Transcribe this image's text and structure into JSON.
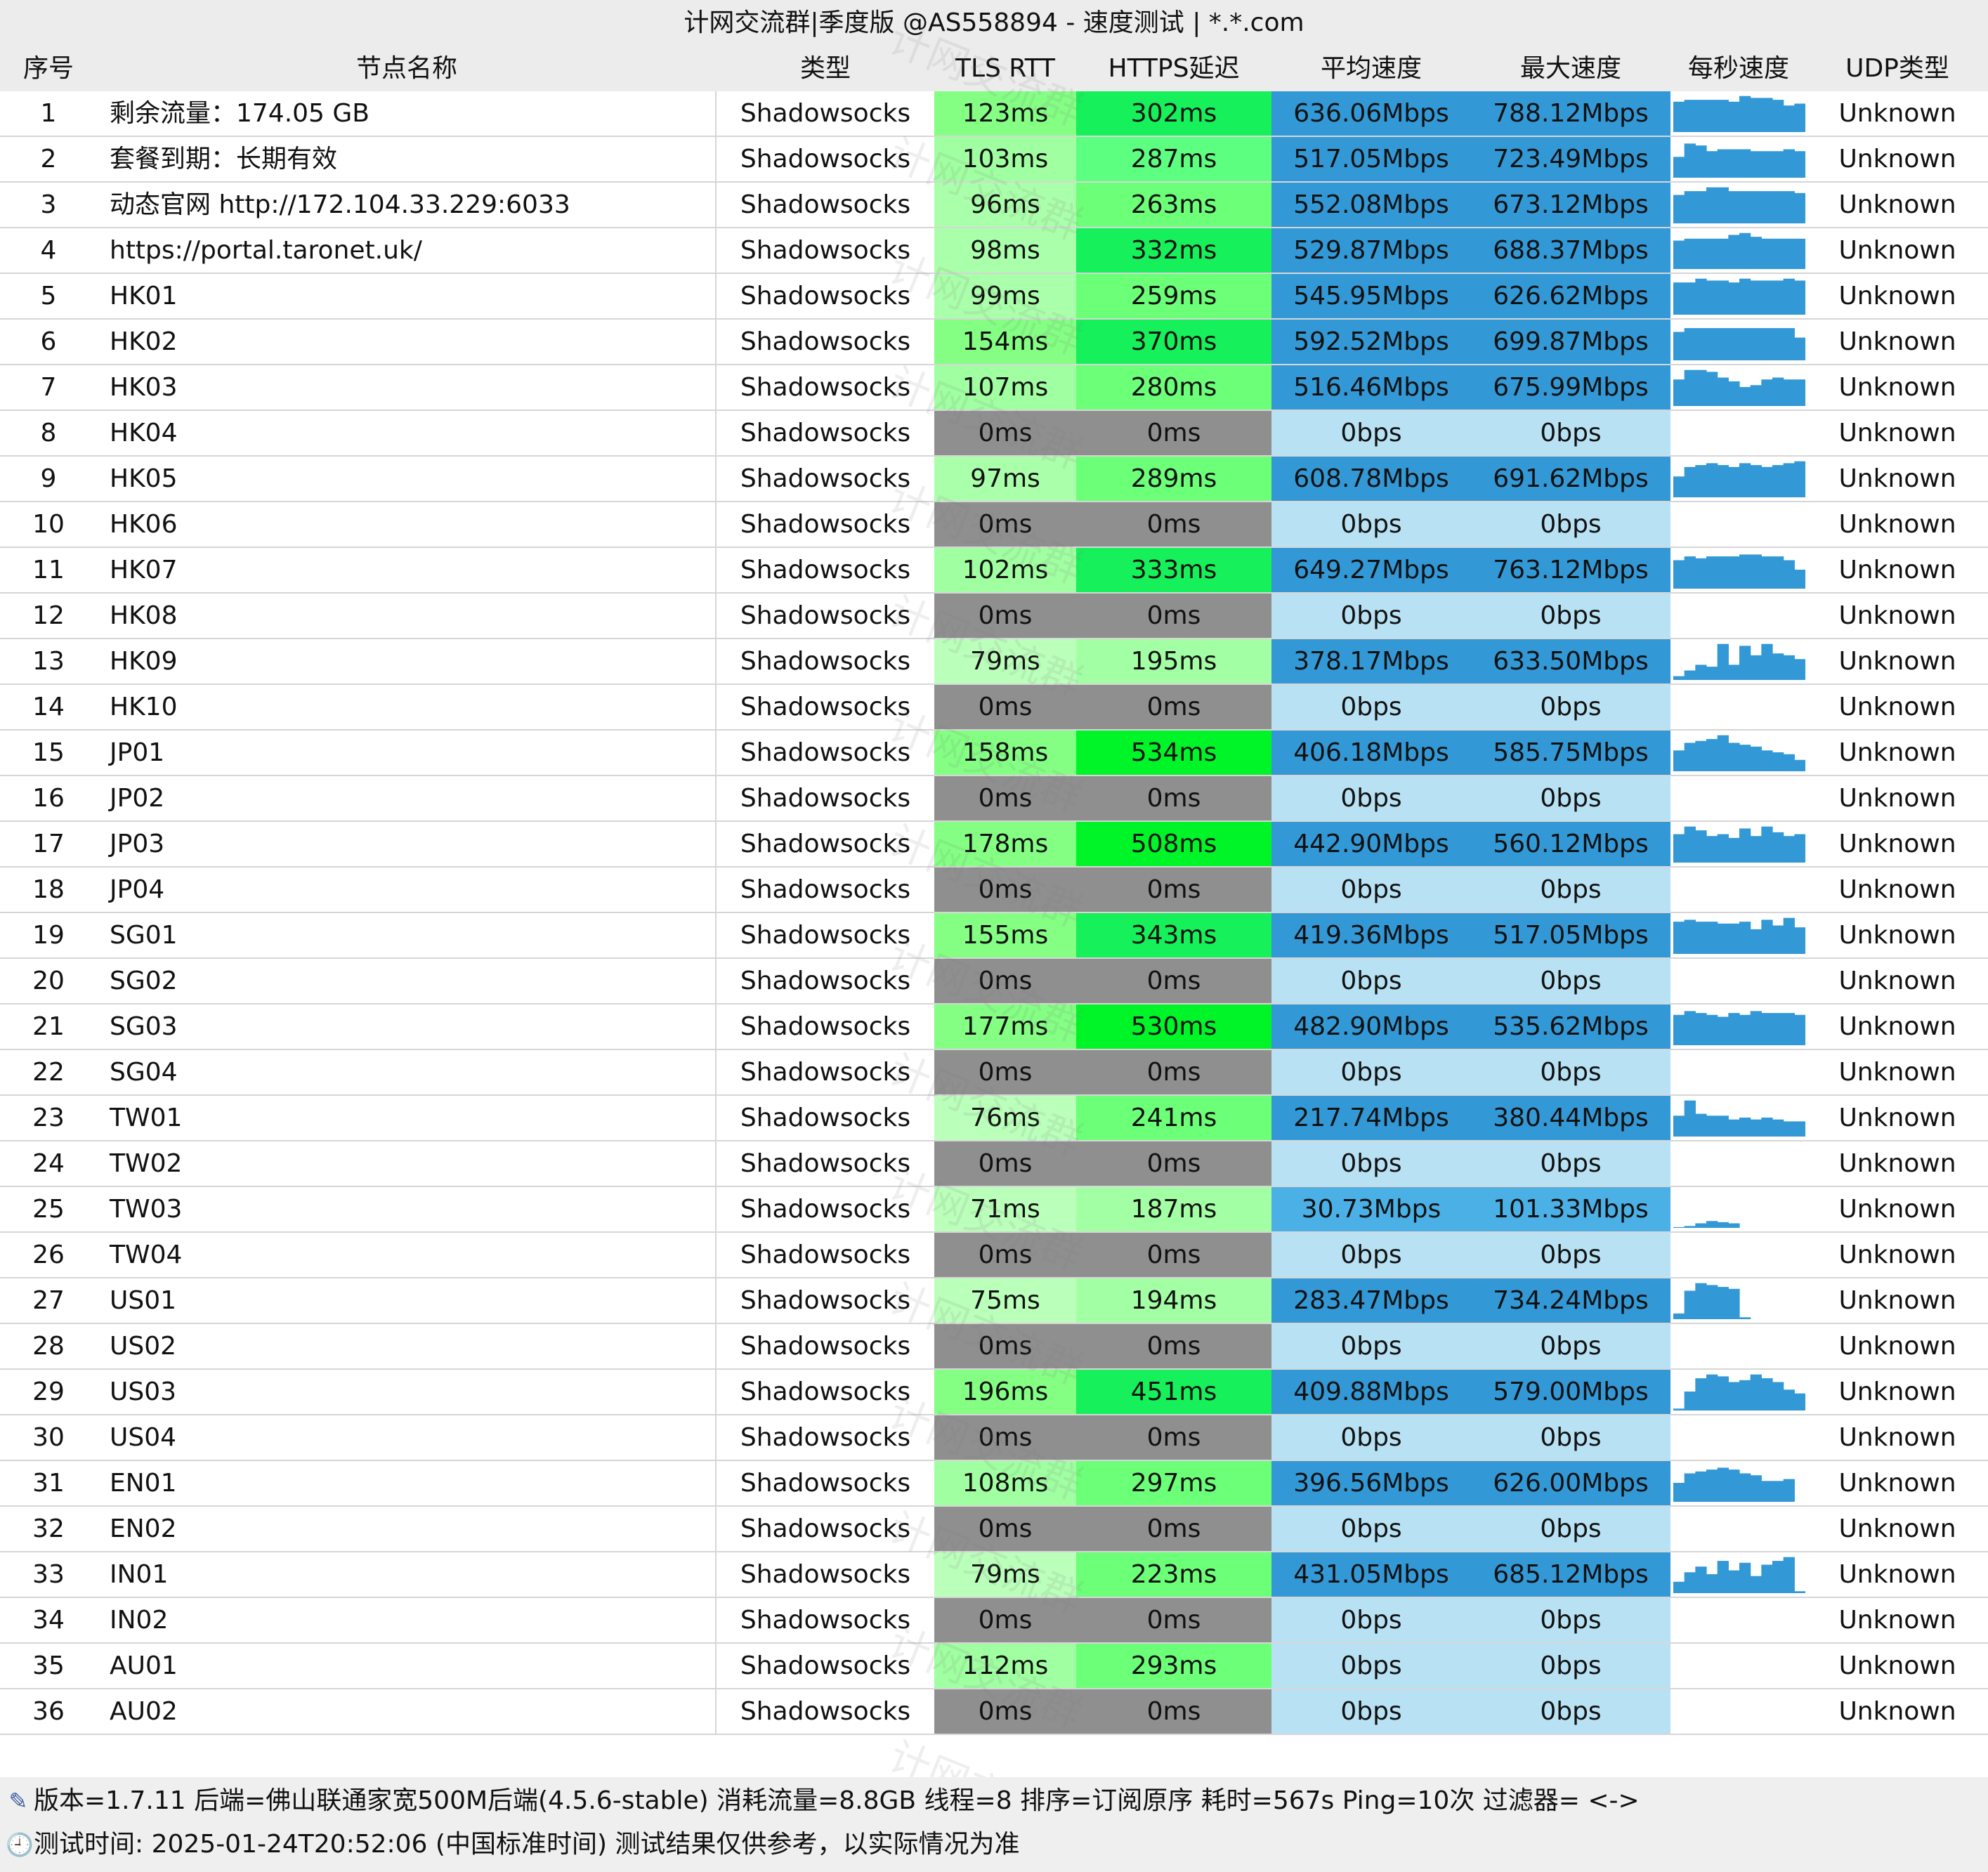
{
  "title": "计网交流群|季度版 @AS558894 - 速度测试 | *.*.com",
  "headers": {
    "index": "序号",
    "name": "节点名称",
    "type": "类型",
    "tls_rtt": "TLS RTT",
    "https_delay": "HTTPS延迟",
    "avg_speed": "平均速度",
    "max_speed": "最大速度",
    "per_second": "每秒速度",
    "udp_type": "UDP类型"
  },
  "watermark_text": "计网交流群",
  "colors": {
    "fail_latency_bg": "#8f8f8f",
    "fail_speed_bg": "#b8e2f4",
    "speed_bg": "#3398d6",
    "speed_low_bg": "#4bb0e6",
    "spark_bar": "#3398d6"
  },
  "rows": [
    {
      "index": "1",
      "name": "剩余流量：174.05 GB",
      "type": "Shadowsocks",
      "tls": "123ms",
      "https": "302ms",
      "avg": "636.06Mbps",
      "max": "788.12Mbps",
      "udp": "Unknown",
      "tls_bg": "#84ff84",
      "https_bg": "#16f05a",
      "avg_bg": "#3398d6",
      "max_bg": "#3398d6",
      "spark": [
        0.8,
        0.85,
        0.85,
        0.85,
        0.85,
        0.8,
        0.95,
        0.9,
        0.9,
        0.85,
        0.7,
        0.75
      ]
    },
    {
      "index": "2",
      "name": "套餐到期：长期有效",
      "type": "Shadowsocks",
      "tls": "103ms",
      "https": "287ms",
      "avg": "517.05Mbps",
      "max": "723.49Mbps",
      "udp": "Unknown",
      "tls_bg": "#a0ffa0",
      "https_bg": "#5cff80",
      "avg_bg": "#3398d6",
      "max_bg": "#3398d6",
      "spark": [
        0.55,
        0.9,
        0.85,
        0.7,
        0.75,
        0.75,
        0.75,
        0.7,
        0.7,
        0.7,
        0.75,
        0.7
      ]
    },
    {
      "index": "3",
      "name": "动态官网 http://172.104.33.229:6033",
      "type": "Shadowsocks",
      "tls": "96ms",
      "https": "263ms",
      "avg": "552.08Mbps",
      "max": "673.12Mbps",
      "udp": "Unknown",
      "tls_bg": "#aaffaa",
      "https_bg": "#6cff78",
      "avg_bg": "#3398d6",
      "max_bg": "#3398d6",
      "spark": [
        0.75,
        0.85,
        0.85,
        0.95,
        0.95,
        0.85,
        0.85,
        0.85,
        0.85,
        0.85,
        0.85,
        0.8
      ]
    },
    {
      "index": "4",
      "name": "https://portal.taronet.uk/",
      "type": "Shadowsocks",
      "tls": "98ms",
      "https": "332ms",
      "avg": "529.87Mbps",
      "max": "688.37Mbps",
      "udp": "Unknown",
      "tls_bg": "#aaffaa",
      "https_bg": "#16f05a",
      "avg_bg": "#3398d6",
      "max_bg": "#3398d6",
      "spark": [
        0.75,
        0.8,
        0.8,
        0.8,
        0.8,
        0.9,
        0.95,
        0.85,
        0.8,
        0.8,
        0.8,
        0.8
      ]
    },
    {
      "index": "5",
      "name": "HK01",
      "type": "Shadowsocks",
      "tls": "99ms",
      "https": "259ms",
      "avg": "545.95Mbps",
      "max": "626.62Mbps",
      "udp": "Unknown",
      "tls_bg": "#aaffaa",
      "https_bg": "#6cff78",
      "avg_bg": "#3398d6",
      "max_bg": "#3398d6",
      "spark": [
        0.85,
        0.85,
        0.95,
        0.9,
        0.9,
        0.85,
        0.95,
        0.9,
        0.9,
        0.9,
        0.95,
        0.9
      ]
    },
    {
      "index": "6",
      "name": "HK02",
      "type": "Shadowsocks",
      "tls": "154ms",
      "https": "370ms",
      "avg": "592.52Mbps",
      "max": "699.87Mbps",
      "udp": "Unknown",
      "tls_bg": "#84ff84",
      "https_bg": "#16f05a",
      "avg_bg": "#3398d6",
      "max_bg": "#3398d6",
      "spark": [
        0.75,
        0.85,
        0.85,
        0.85,
        0.85,
        0.85,
        0.85,
        0.85,
        0.85,
        0.85,
        0.85,
        0.6
      ]
    },
    {
      "index": "7",
      "name": "HK03",
      "type": "Shadowsocks",
      "tls": "107ms",
      "https": "280ms",
      "avg": "516.46Mbps",
      "max": "675.99Mbps",
      "udp": "Unknown",
      "tls_bg": "#a0ffa0",
      "https_bg": "#6cff78",
      "avg_bg": "#3398d6",
      "max_bg": "#3398d6",
      "spark": [
        0.7,
        0.95,
        0.95,
        0.9,
        0.75,
        0.65,
        0.5,
        0.55,
        0.7,
        0.75,
        0.7,
        0.7
      ]
    },
    {
      "index": "8",
      "name": "HK04",
      "type": "Shadowsocks",
      "tls": "0ms",
      "https": "0ms",
      "avg": "0bps",
      "max": "0bps",
      "udp": "Unknown",
      "tls_bg": "#8f8f8f",
      "https_bg": "#8f8f8f",
      "avg_bg": "#b8e2f4",
      "max_bg": "#b8e2f4",
      "spark": []
    },
    {
      "index": "9",
      "name": "HK05",
      "type": "Shadowsocks",
      "tls": "97ms",
      "https": "289ms",
      "avg": "608.78Mbps",
      "max": "691.62Mbps",
      "udp": "Unknown",
      "tls_bg": "#aaffaa",
      "https_bg": "#6cff78",
      "avg_bg": "#3398d6",
      "max_bg": "#3398d6",
      "spark": [
        0.55,
        0.8,
        0.85,
        0.9,
        0.85,
        0.8,
        0.9,
        0.85,
        0.8,
        0.85,
        0.9,
        0.95
      ]
    },
    {
      "index": "10",
      "name": "HK06",
      "type": "Shadowsocks",
      "tls": "0ms",
      "https": "0ms",
      "avg": "0bps",
      "max": "0bps",
      "udp": "Unknown",
      "tls_bg": "#8f8f8f",
      "https_bg": "#8f8f8f",
      "avg_bg": "#b8e2f4",
      "max_bg": "#b8e2f4",
      "spark": []
    },
    {
      "index": "11",
      "name": "HK07",
      "type": "Shadowsocks",
      "tls": "102ms",
      "https": "333ms",
      "avg": "649.27Mbps",
      "max": "763.12Mbps",
      "udp": "Unknown",
      "tls_bg": "#a0ffa0",
      "https_bg": "#16f05a",
      "avg_bg": "#3398d6",
      "max_bg": "#3398d6",
      "spark": [
        0.75,
        0.85,
        0.8,
        0.85,
        0.85,
        0.85,
        0.9,
        0.9,
        0.85,
        0.85,
        0.75,
        0.5
      ]
    },
    {
      "index": "12",
      "name": "HK08",
      "type": "Shadowsocks",
      "tls": "0ms",
      "https": "0ms",
      "avg": "0bps",
      "max": "0bps",
      "udp": "Unknown",
      "tls_bg": "#8f8f8f",
      "https_bg": "#8f8f8f",
      "avg_bg": "#b8e2f4",
      "max_bg": "#b8e2f4",
      "spark": []
    },
    {
      "index": "13",
      "name": "HK09",
      "type": "Shadowsocks",
      "tls": "79ms",
      "https": "195ms",
      "avg": "378.17Mbps",
      "max": "633.50Mbps",
      "udp": "Unknown",
      "tls_bg": "#baffba",
      "https_bg": "#a3ffa3",
      "avg_bg": "#3398d6",
      "max_bg": "#3398d6",
      "spark": [
        0.1,
        0.25,
        0.4,
        0.35,
        0.95,
        0.4,
        0.9,
        0.65,
        0.95,
        0.7,
        0.65,
        0.55
      ]
    },
    {
      "index": "14",
      "name": "HK10",
      "type": "Shadowsocks",
      "tls": "0ms",
      "https": "0ms",
      "avg": "0bps",
      "max": "0bps",
      "udp": "Unknown",
      "tls_bg": "#8f8f8f",
      "https_bg": "#8f8f8f",
      "avg_bg": "#b8e2f4",
      "max_bg": "#b8e2f4",
      "spark": []
    },
    {
      "index": "15",
      "name": "JP01",
      "type": "Shadowsocks",
      "tls": "158ms",
      "https": "534ms",
      "avg": "406.18Mbps",
      "max": "585.75Mbps",
      "udp": "Unknown",
      "tls_bg": "#84ff84",
      "https_bg": "#00f528",
      "avg_bg": "#3398d6",
      "max_bg": "#3398d6",
      "spark": [
        0.55,
        0.75,
        0.8,
        0.85,
        0.95,
        0.75,
        0.7,
        0.65,
        0.55,
        0.5,
        0.45,
        0.3
      ]
    },
    {
      "index": "16",
      "name": "JP02",
      "type": "Shadowsocks",
      "tls": "0ms",
      "https": "0ms",
      "avg": "0bps",
      "max": "0bps",
      "udp": "Unknown",
      "tls_bg": "#8f8f8f",
      "https_bg": "#8f8f8f",
      "avg_bg": "#b8e2f4",
      "max_bg": "#b8e2f4",
      "spark": []
    },
    {
      "index": "17",
      "name": "JP03",
      "type": "Shadowsocks",
      "tls": "178ms",
      "https": "508ms",
      "avg": "442.90Mbps",
      "max": "560.12Mbps",
      "udp": "Unknown",
      "tls_bg": "#84ff84",
      "https_bg": "#00f528",
      "avg_bg": "#3398d6",
      "max_bg": "#3398d6",
      "spark": [
        0.75,
        0.95,
        0.85,
        0.7,
        0.75,
        0.65,
        0.9,
        0.7,
        0.95,
        0.8,
        0.7,
        0.75
      ]
    },
    {
      "index": "18",
      "name": "JP04",
      "type": "Shadowsocks",
      "tls": "0ms",
      "https": "0ms",
      "avg": "0bps",
      "max": "0bps",
      "udp": "Unknown",
      "tls_bg": "#8f8f8f",
      "https_bg": "#8f8f8f",
      "avg_bg": "#b8e2f4",
      "max_bg": "#b8e2f4",
      "spark": []
    },
    {
      "index": "19",
      "name": "SG01",
      "type": "Shadowsocks",
      "tls": "155ms",
      "https": "343ms",
      "avg": "419.36Mbps",
      "max": "517.05Mbps",
      "udp": "Unknown",
      "tls_bg": "#84ff84",
      "https_bg": "#16f05a",
      "avg_bg": "#3398d6",
      "max_bg": "#3398d6",
      "spark": [
        0.85,
        0.9,
        0.85,
        0.85,
        0.8,
        0.8,
        0.85,
        0.65,
        0.9,
        0.75,
        0.95,
        0.7
      ]
    },
    {
      "index": "20",
      "name": "SG02",
      "type": "Shadowsocks",
      "tls": "0ms",
      "https": "0ms",
      "avg": "0bps",
      "max": "0bps",
      "udp": "Unknown",
      "tls_bg": "#8f8f8f",
      "https_bg": "#8f8f8f",
      "avg_bg": "#b8e2f4",
      "max_bg": "#b8e2f4",
      "spark": []
    },
    {
      "index": "21",
      "name": "SG03",
      "type": "Shadowsocks",
      "tls": "177ms",
      "https": "530ms",
      "avg": "482.90Mbps",
      "max": "535.62Mbps",
      "udp": "Unknown",
      "tls_bg": "#84ff84",
      "https_bg": "#00f528",
      "avg_bg": "#3398d6",
      "max_bg": "#3398d6",
      "spark": [
        0.8,
        0.9,
        0.85,
        0.8,
        0.75,
        0.85,
        0.8,
        0.9,
        0.85,
        0.85,
        0.85,
        0.8
      ]
    },
    {
      "index": "22",
      "name": "SG04",
      "type": "Shadowsocks",
      "tls": "0ms",
      "https": "0ms",
      "avg": "0bps",
      "max": "0bps",
      "udp": "Unknown",
      "tls_bg": "#8f8f8f",
      "https_bg": "#8f8f8f",
      "avg_bg": "#b8e2f4",
      "max_bg": "#b8e2f4",
      "spark": []
    },
    {
      "index": "23",
      "name": "TW01",
      "type": "Shadowsocks",
      "tls": "76ms",
      "https": "241ms",
      "avg": "217.74Mbps",
      "max": "380.44Mbps",
      "udp": "Unknown",
      "tls_bg": "#baffba",
      "https_bg": "#6cff78",
      "avg_bg": "#3398d6",
      "max_bg": "#3398d6",
      "spark": [
        0.55,
        0.95,
        0.6,
        0.55,
        0.55,
        0.45,
        0.5,
        0.45,
        0.5,
        0.45,
        0.4,
        0.4
      ]
    },
    {
      "index": "24",
      "name": "TW02",
      "type": "Shadowsocks",
      "tls": "0ms",
      "https": "0ms",
      "avg": "0bps",
      "max": "0bps",
      "udp": "Unknown",
      "tls_bg": "#8f8f8f",
      "https_bg": "#8f8f8f",
      "avg_bg": "#b8e2f4",
      "max_bg": "#b8e2f4",
      "spark": []
    },
    {
      "index": "25",
      "name": "TW03",
      "type": "Shadowsocks",
      "tls": "71ms",
      "https": "187ms",
      "avg": "30.73Mbps",
      "max": "101.33Mbps",
      "udp": "Unknown",
      "tls_bg": "#baffba",
      "https_bg": "#a3ffa3",
      "avg_bg": "#4bb0e6",
      "max_bg": "#4bb0e6",
      "spark": [
        0.02,
        0.05,
        0.12,
        0.18,
        0.15,
        0.12,
        0,
        0,
        0,
        0,
        0,
        0
      ]
    },
    {
      "index": "26",
      "name": "TW04",
      "type": "Shadowsocks",
      "tls": "0ms",
      "https": "0ms",
      "avg": "0bps",
      "max": "0bps",
      "udp": "Unknown",
      "tls_bg": "#8f8f8f",
      "https_bg": "#8f8f8f",
      "avg_bg": "#b8e2f4",
      "max_bg": "#b8e2f4",
      "spark": []
    },
    {
      "index": "27",
      "name": "US01",
      "type": "Shadowsocks",
      "tls": "75ms",
      "https": "194ms",
      "avg": "283.47Mbps",
      "max": "734.24Mbps",
      "udp": "Unknown",
      "tls_bg": "#baffba",
      "https_bg": "#a3ffa3",
      "avg_bg": "#3398d6",
      "max_bg": "#3398d6",
      "spark": [
        0.15,
        0.75,
        0.95,
        0.9,
        0.85,
        0.8,
        0.05,
        0,
        0,
        0,
        0,
        0
      ]
    },
    {
      "index": "28",
      "name": "US02",
      "type": "Shadowsocks",
      "tls": "0ms",
      "https": "0ms",
      "avg": "0bps",
      "max": "0bps",
      "udp": "Unknown",
      "tls_bg": "#8f8f8f",
      "https_bg": "#8f8f8f",
      "avg_bg": "#b8e2f4",
      "max_bg": "#b8e2f4",
      "spark": []
    },
    {
      "index": "29",
      "name": "US03",
      "type": "Shadowsocks",
      "tls": "196ms",
      "https": "451ms",
      "avg": "409.88Mbps",
      "max": "579.00Mbps",
      "udp": "Unknown",
      "tls_bg": "#84ff84",
      "https_bg": "#16f05a",
      "avg_bg": "#3398d6",
      "max_bg": "#3398d6",
      "spark": [
        0.05,
        0.5,
        0.85,
        0.95,
        0.9,
        0.75,
        0.8,
        0.95,
        0.85,
        0.75,
        0.55,
        0.45
      ]
    },
    {
      "index": "30",
      "name": "US04",
      "type": "Shadowsocks",
      "tls": "0ms",
      "https": "0ms",
      "avg": "0bps",
      "max": "0bps",
      "udp": "Unknown",
      "tls_bg": "#8f8f8f",
      "https_bg": "#8f8f8f",
      "avg_bg": "#b8e2f4",
      "max_bg": "#b8e2f4",
      "spark": []
    },
    {
      "index": "31",
      "name": "EN01",
      "type": "Shadowsocks",
      "tls": "108ms",
      "https": "297ms",
      "avg": "396.56Mbps",
      "max": "626.00Mbps",
      "udp": "Unknown",
      "tls_bg": "#a0ffa0",
      "https_bg": "#6cff78",
      "avg_bg": "#3398d6",
      "max_bg": "#3398d6",
      "spark": [
        0.5,
        0.75,
        0.8,
        0.85,
        0.9,
        0.85,
        0.75,
        0.7,
        0.55,
        0.55,
        0.6,
        0
      ]
    },
    {
      "index": "32",
      "name": "EN02",
      "type": "Shadowsocks",
      "tls": "0ms",
      "https": "0ms",
      "avg": "0bps",
      "max": "0bps",
      "udp": "Unknown",
      "tls_bg": "#8f8f8f",
      "https_bg": "#8f8f8f",
      "avg_bg": "#b8e2f4",
      "max_bg": "#b8e2f4",
      "spark": []
    },
    {
      "index": "33",
      "name": "IN01",
      "type": "Shadowsocks",
      "tls": "79ms",
      "https": "223ms",
      "avg": "431.05Mbps",
      "max": "685.12Mbps",
      "udp": "Unknown",
      "tls_bg": "#baffba",
      "https_bg": "#6cff78",
      "avg_bg": "#3398d6",
      "max_bg": "#3398d6",
      "spark": [
        0.3,
        0.55,
        0.7,
        0.5,
        0.85,
        0.6,
        0.8,
        0.45,
        0.75,
        0.85,
        0.95,
        0.05
      ]
    },
    {
      "index": "34",
      "name": "IN02",
      "type": "Shadowsocks",
      "tls": "0ms",
      "https": "0ms",
      "avg": "0bps",
      "max": "0bps",
      "udp": "Unknown",
      "tls_bg": "#8f8f8f",
      "https_bg": "#8f8f8f",
      "avg_bg": "#b8e2f4",
      "max_bg": "#b8e2f4",
      "spark": []
    },
    {
      "index": "35",
      "name": "AU01",
      "type": "Shadowsocks",
      "tls": "112ms",
      "https": "293ms",
      "avg": "0bps",
      "max": "0bps",
      "udp": "Unknown",
      "tls_bg": "#a0ffa0",
      "https_bg": "#6cff78",
      "avg_bg": "#b8e2f4",
      "max_bg": "#b8e2f4",
      "spark": []
    },
    {
      "index": "36",
      "name": "AU02",
      "type": "Shadowsocks",
      "tls": "0ms",
      "https": "0ms",
      "avg": "0bps",
      "max": "0bps",
      "udp": "Unknown",
      "tls_bg": "#8f8f8f",
      "https_bg": "#8f8f8f",
      "avg_bg": "#b8e2f4",
      "max_bg": "#b8e2f4",
      "spark": []
    }
  ],
  "footer": {
    "line1_icon": "version-icon",
    "line1": "版本=1.7.11  后端=佛山联通家宽500M后端(4.5.6-stable) 消耗流量=8.8GB  线程=8  排序=订阅原序  耗时=567s  Ping=10次  过滤器= <->",
    "line2_icon": "clock-icon",
    "line2": "测试时间: 2025-01-24T20:52:06 (中国标准时间)  测试结果仅供参考，以实际情况为准"
  }
}
